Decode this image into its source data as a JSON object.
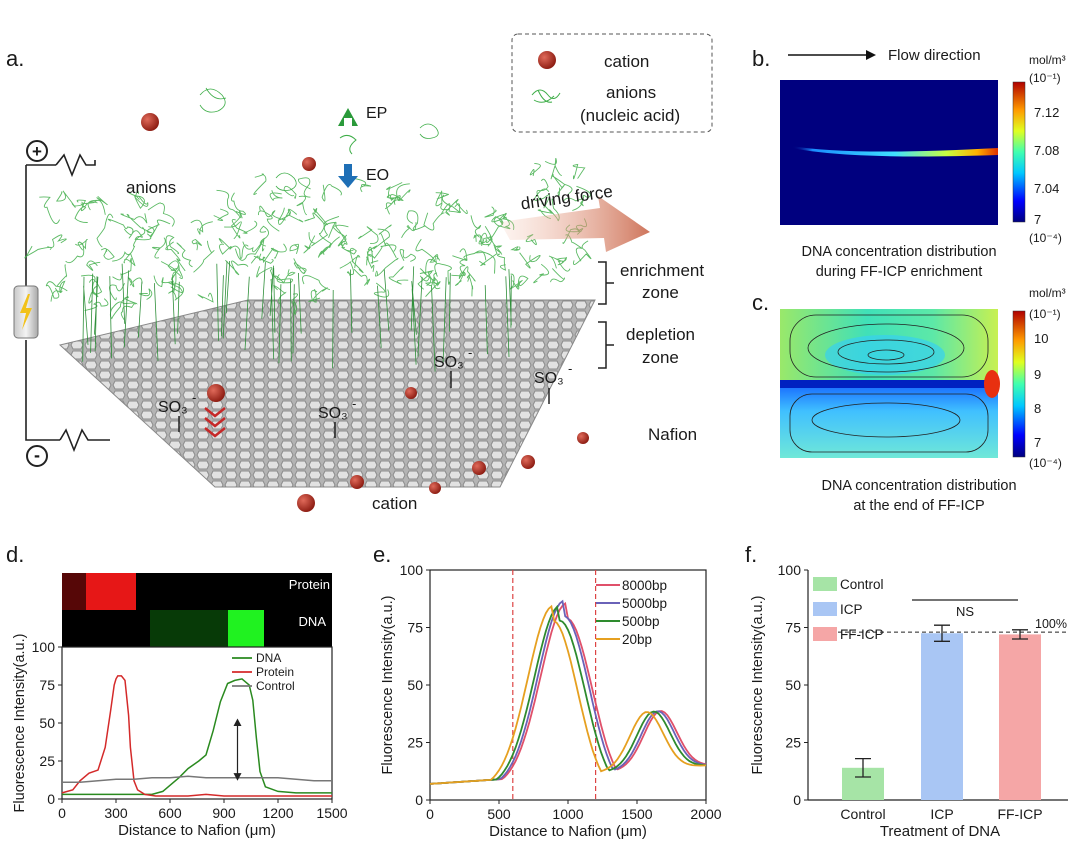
{
  "panel_a": {
    "label": "a.",
    "legend": {
      "cation": "cation",
      "anions_line1": "anions",
      "anions_line2": "(nucleic acid)"
    },
    "ep": "EP",
    "eo": "EO",
    "plus": "+",
    "minus": "-",
    "anions": "anions",
    "driving_force": "driving force",
    "enrichment_1": "enrichment",
    "enrichment_2": "zone",
    "depletion_1": "depletion",
    "depletion_2": "zone",
    "so3": "SO₃",
    "so3_charge": "-",
    "nafion": "Nafion",
    "cation_bottom": "cation",
    "colors": {
      "membrane": "#9a9a9a",
      "anion": "#3fae49",
      "cation": "#a3251b"
    }
  },
  "panel_b": {
    "label": "b.",
    "flow": "Flow direction",
    "unit": "mol/m³",
    "scale_top": "(10⁻¹)",
    "scale_bottom": "(10⁻⁴)",
    "ticks": [
      "7.12",
      "7.08",
      "7.04",
      "7"
    ],
    "caption_1": "DNA concentration distribution",
    "caption_2": "during FF-ICP enrichment"
  },
  "panel_c": {
    "label": "c.",
    "unit": "mol/m³",
    "scale_top": "(10⁻¹)",
    "scale_bottom": "(10⁻⁴)",
    "ticks": [
      "10",
      "9",
      "8",
      "7"
    ],
    "caption_1": "DNA concentration distribution",
    "caption_2": "at the end of FF-ICP"
  },
  "panel_d": {
    "label": "d.",
    "strip_protein": "Protein",
    "strip_dna": "DNA",
    "chart_data": {
      "type": "line",
      "ylabel": "Fluorescence  Intensity(a.u.)",
      "xlabel": "Distance to Nafion (μm)",
      "xlim": [
        0,
        1500
      ],
      "ylim": [
        0,
        100
      ],
      "xticks": [
        "0",
        "300",
        "600",
        "900",
        "1200",
        "1500"
      ],
      "yticks": [
        "0",
        "25",
        "50",
        "75",
        "100"
      ],
      "series": [
        {
          "name": "DNA",
          "color": "#2a8a1f",
          "x": [
            0,
            100,
            300,
            500,
            560,
            600,
            650,
            700,
            760,
            800,
            840,
            880,
            920,
            960,
            1000,
            1040,
            1060,
            1080,
            1100,
            1130,
            1200,
            1300,
            1400,
            1500
          ],
          "y": [
            3,
            3,
            3,
            3,
            5,
            9,
            14,
            20,
            25,
            29,
            45,
            64,
            76,
            78,
            79,
            75,
            65,
            40,
            18,
            8,
            5,
            4,
            4,
            4
          ]
        },
        {
          "name": "Protein",
          "color": "#d42a2a",
          "x": [
            0,
            60,
            100,
            150,
            200,
            240,
            270,
            290,
            300,
            310,
            330,
            350,
            370,
            380,
            400,
            420,
            460,
            520,
            600,
            700,
            800,
            900,
            1000,
            1100,
            1200,
            1300,
            1400,
            1500
          ],
          "y": [
            4,
            6,
            12,
            17,
            19,
            34,
            58,
            75,
            79,
            81,
            81,
            78,
            55,
            34,
            12,
            6,
            3,
            2,
            2,
            2,
            3,
            2,
            2,
            2,
            2,
            2,
            2,
            2
          ]
        },
        {
          "name": "Control",
          "color": "#777777",
          "x": [
            0,
            100,
            200,
            300,
            400,
            500,
            600,
            700,
            800,
            900,
            1000,
            1100,
            1200,
            1300,
            1400,
            1500
          ],
          "y": [
            11,
            11,
            12,
            13,
            13,
            14,
            14,
            15,
            14,
            14,
            14,
            14,
            14,
            13,
            12,
            12
          ]
        }
      ]
    }
  },
  "panel_e": {
    "label": "e.",
    "chart_data": {
      "type": "line",
      "ylabel": "Fluorescence  Intensity(a.u.)",
      "xlabel": "Distance to Nafion (μm)",
      "xlim": [
        0,
        2000
      ],
      "ylim": [
        0,
        100
      ],
      "xticks": [
        "0",
        "500",
        "1000",
        "1500",
        "2000"
      ],
      "yticks": [
        "0",
        "25",
        "50",
        "75",
        "100"
      ],
      "vlines": [
        600,
        1200
      ],
      "series": [
        {
          "name": "8000bp",
          "color": "#e0506a",
          "peak": 990,
          "height": 79,
          "width": 265
        },
        {
          "name": "5000bp",
          "color": "#6a62b8",
          "peak": 970,
          "height": 80,
          "width": 262
        },
        {
          "name": "500bp",
          "color": "#2e8b2e",
          "peak": 940,
          "height": 78,
          "width": 260
        },
        {
          "name": "20bp",
          "color": "#e6a020",
          "peak": 890,
          "height": 78,
          "width": 255
        }
      ]
    }
  },
  "panel_f": {
    "label": "f.",
    "sig": "NS",
    "ref_label": "100%",
    "chart_data": {
      "type": "bar",
      "categories": [
        "Control",
        "ICP",
        "FF-ICP"
      ],
      "values": [
        14,
        72.5,
        72
      ],
      "errors": [
        4,
        3.5,
        2
      ],
      "colors": [
        "#a6e4a6",
        "#a9c6f4",
        "#f5a6a6"
      ],
      "ylabel": "Fluorescence  Intensity(a.u.)",
      "xlabel": "Treatment of DNA",
      "ylim": [
        0,
        100
      ],
      "yticks": [
        "0",
        "25",
        "50",
        "75",
        "100"
      ],
      "reference": 73,
      "legend": [
        "Control",
        "ICP",
        "FF-ICP"
      ]
    }
  }
}
